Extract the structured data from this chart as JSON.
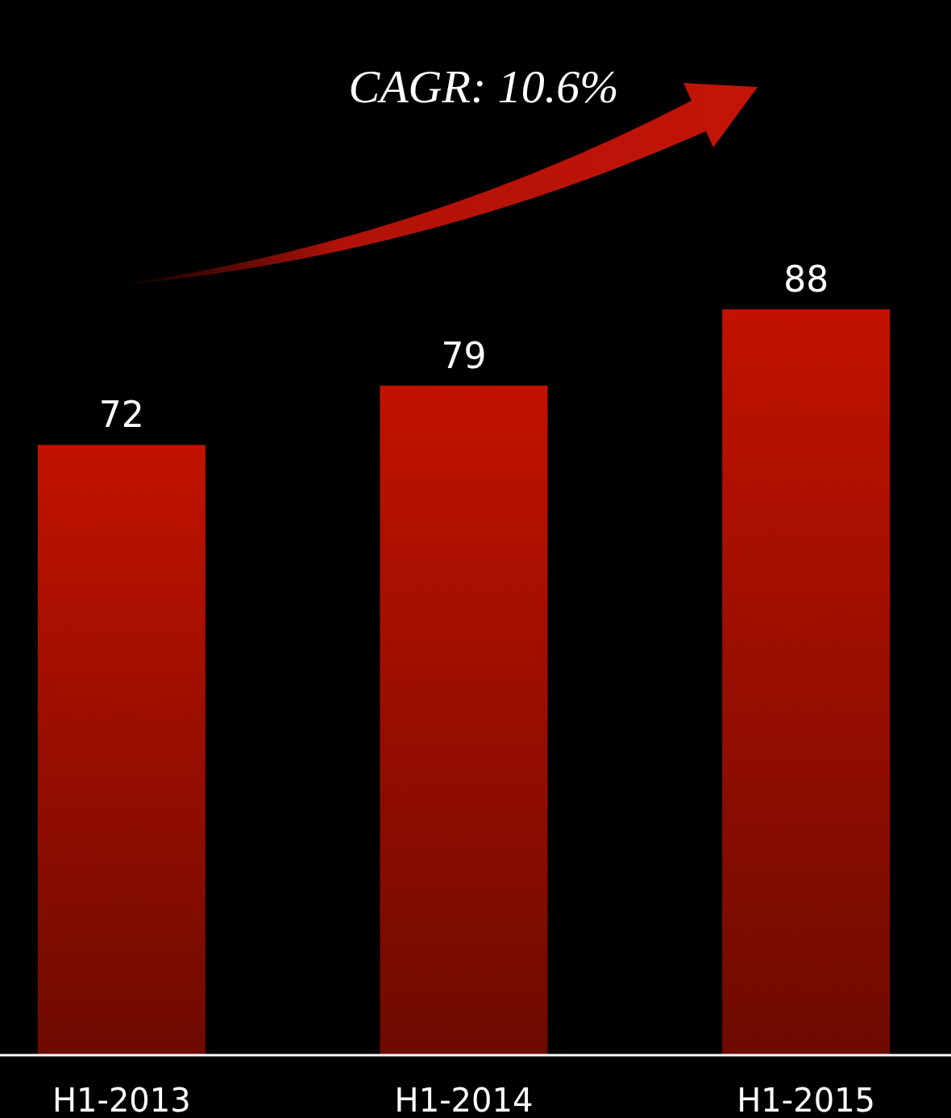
{
  "chart_data": {
    "type": "bar",
    "categories": [
      "H1-2013",
      "H1-2014",
      "H1-2015"
    ],
    "values": [
      72,
      79,
      88
    ],
    "color": "#c21200",
    "ylim": [
      0,
      124.5
    ],
    "data_labels": true,
    "annotations": [
      "CAGR: 10.6%"
    ]
  }
}
